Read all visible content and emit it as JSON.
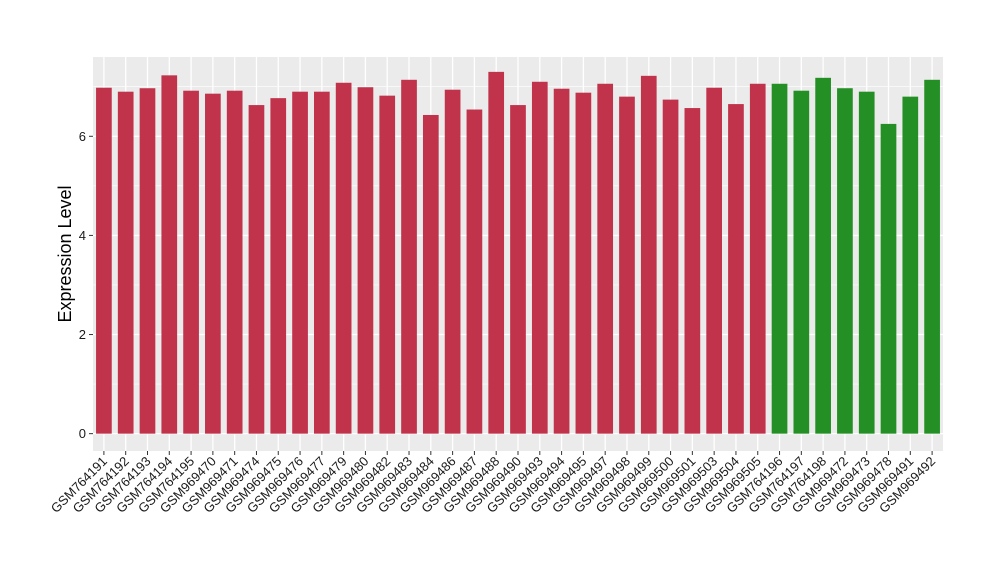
{
  "chart_data": {
    "type": "bar",
    "title": "",
    "xlabel": "",
    "ylabel": "Expression Level",
    "ylim": [
      -0.35,
      7.6
    ],
    "yticks": [
      0,
      2,
      4,
      6
    ],
    "grid": true,
    "panel_background": "#ebebeb",
    "grid_color": "#ffffff",
    "group_colors": {
      "group_a": "#c0334b",
      "group_b": "#248f24"
    },
    "categories": [
      "GSM764191",
      "GSM764192",
      "GSM764193",
      "GSM764194",
      "GSM764195",
      "GSM969470",
      "GSM969471",
      "GSM969474",
      "GSM969475",
      "GSM969476",
      "GSM969477",
      "GSM969479",
      "GSM969480",
      "GSM969482",
      "GSM969483",
      "GSM969484",
      "GSM969486",
      "GSM969487",
      "GSM969488",
      "GSM969490",
      "GSM969493",
      "GSM969494",
      "GSM969495",
      "GSM969497",
      "GSM969498",
      "GSM969499",
      "GSM969500",
      "GSM969501",
      "GSM969503",
      "GSM969504",
      "GSM969505",
      "GSM764196",
      "GSM764197",
      "GSM764198",
      "GSM969472",
      "GSM969473",
      "GSM969478",
      "GSM969491",
      "GSM969492"
    ],
    "values": [
      6.98,
      6.9,
      6.97,
      7.23,
      6.92,
      6.86,
      6.92,
      6.63,
      6.77,
      6.9,
      6.9,
      7.08,
      6.99,
      6.82,
      7.14,
      6.43,
      6.94,
      6.54,
      7.3,
      6.63,
      7.1,
      6.96,
      6.88,
      7.06,
      6.8,
      7.22,
      6.74,
      6.57,
      6.98,
      6.65,
      7.06,
      7.06,
      6.92,
      7.18,
      6.97,
      6.9,
      6.25,
      6.8,
      7.14
    ],
    "groups": [
      "group_a",
      "group_a",
      "group_a",
      "group_a",
      "group_a",
      "group_a",
      "group_a",
      "group_a",
      "group_a",
      "group_a",
      "group_a",
      "group_a",
      "group_a",
      "group_a",
      "group_a",
      "group_a",
      "group_a",
      "group_a",
      "group_a",
      "group_a",
      "group_a",
      "group_a",
      "group_a",
      "group_a",
      "group_a",
      "group_a",
      "group_a",
      "group_a",
      "group_a",
      "group_a",
      "group_a",
      "group_b",
      "group_b",
      "group_b",
      "group_b",
      "group_b",
      "group_b",
      "group_b",
      "group_b"
    ]
  }
}
